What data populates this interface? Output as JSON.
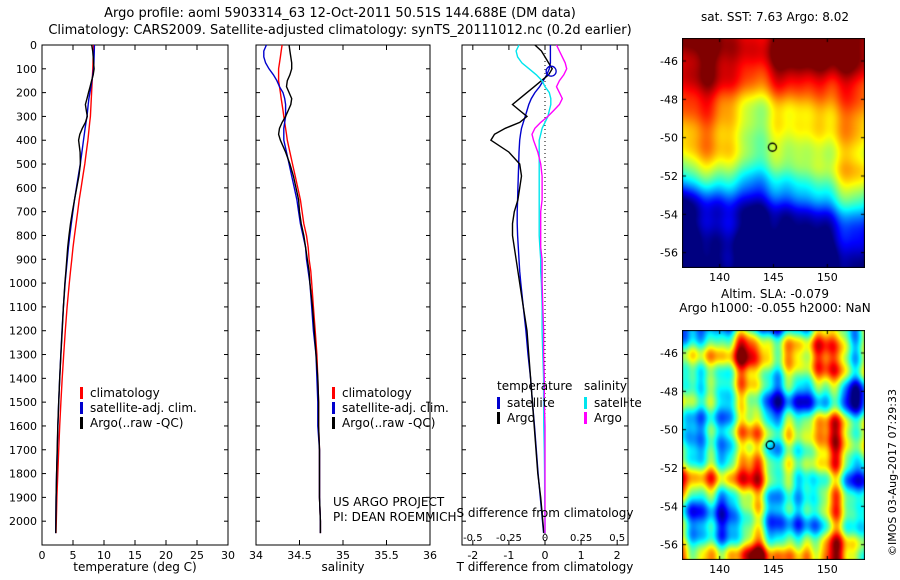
{
  "header": {
    "line1": "Argo profile: aoml 5903314_63 12-Oct-2011 50.51S 144.688E (DM data)",
    "line2": "Climatology: CARS2009. Satellite-adjusted climatology: synTS_20111012.nc (0.2d earlier)"
  },
  "annotations": {
    "project_line1": "US ARGO PROJECT",
    "project_line2": "PI: DEAN ROEMMICH",
    "watermark": "©IMOS 03-Aug-2017 07:29:33"
  },
  "chart_data": [
    {
      "type": "line",
      "id": "temperature",
      "xlabel": "temperature (deg C)",
      "xlim": [
        0,
        30
      ],
      "xticks": [
        0,
        5,
        10,
        15,
        20,
        25,
        30
      ],
      "ylim": [
        0,
        2100
      ],
      "yticks": [
        0,
        100,
        200,
        300,
        400,
        500,
        600,
        700,
        800,
        900,
        1000,
        1100,
        1200,
        1300,
        1400,
        1500,
        1600,
        1700,
        1800,
        1900,
        2000
      ],
      "depth_tick_labels": true,
      "depths": [
        0,
        25,
        50,
        75,
        100,
        125,
        150,
        175,
        200,
        225,
        250,
        275,
        300,
        325,
        350,
        375,
        400,
        450,
        500,
        550,
        600,
        650,
        700,
        750,
        800,
        850,
        900,
        950,
        1000,
        1100,
        1200,
        1300,
        1400,
        1500,
        1600,
        1700,
        1800,
        1900,
        2000,
        2050
      ],
      "series": [
        {
          "name": "climatology",
          "color": "#ff0000",
          "values": [
            8.3,
            8.28,
            8.25,
            8.22,
            8.2,
            8.15,
            8.1,
            8.05,
            8.0,
            7.95,
            7.9,
            7.85,
            7.8,
            7.7,
            7.6,
            7.5,
            7.4,
            7.15,
            6.9,
            6.6,
            6.3,
            6.0,
            5.75,
            5.5,
            5.25,
            5.0,
            4.8,
            4.6,
            4.4,
            4.05,
            3.75,
            3.5,
            3.25,
            3.05,
            2.85,
            2.7,
            2.55,
            2.4,
            2.3,
            2.25
          ]
        },
        {
          "name": "satellite-adj. clim.",
          "color": "#0000cd",
          "values": [
            8.45,
            8.43,
            8.4,
            8.37,
            8.32,
            8.2,
            8.05,
            7.9,
            7.72,
            7.57,
            7.45,
            7.35,
            7.25,
            7.1,
            6.95,
            6.82,
            6.7,
            6.43,
            6.17,
            5.86,
            5.55,
            5.24,
            4.98,
            4.73,
            4.49,
            4.26,
            4.08,
            3.9,
            3.73,
            3.45,
            3.22,
            3.03,
            2.85,
            2.7,
            2.56,
            2.46,
            2.36,
            2.27,
            2.23,
            2.21
          ]
        },
        {
          "name": "Argo(..raw -QC)",
          "color": "#000000",
          "values": [
            8.02,
            8.18,
            8.25,
            8.32,
            8.4,
            8.25,
            8.0,
            7.75,
            7.5,
            7.25,
            7.0,
            7.15,
            7.3,
            7.0,
            6.5,
            6.1,
            5.9,
            6.15,
            6.2,
            5.95,
            5.6,
            5.25,
            4.9,
            4.6,
            4.35,
            4.15,
            4.0,
            3.85,
            3.7,
            3.45,
            3.25,
            3.05,
            2.85,
            2.7,
            2.55,
            2.45,
            2.35,
            2.28,
            2.24,
            2.22
          ]
        }
      ]
    },
    {
      "type": "line",
      "id": "salinity",
      "xlabel": "salinity",
      "xlim": [
        34,
        36
      ],
      "xticks": [
        34,
        34.5,
        35,
        35.5,
        36
      ],
      "ylim": [
        0,
        2100
      ],
      "yticks": [
        0,
        100,
        200,
        300,
        400,
        500,
        600,
        700,
        800,
        900,
        1000,
        1100,
        1200,
        1300,
        1400,
        1500,
        1600,
        1700,
        1800,
        1900,
        2000
      ],
      "depth_tick_labels": false,
      "depths": [
        0,
        25,
        50,
        75,
        100,
        125,
        150,
        175,
        200,
        225,
        250,
        275,
        300,
        325,
        350,
        375,
        400,
        450,
        500,
        550,
        600,
        650,
        700,
        750,
        800,
        850,
        900,
        950,
        1000,
        1100,
        1200,
        1300,
        1400,
        1500,
        1600,
        1700,
        1800,
        1900,
        2000,
        2050
      ],
      "series": [
        {
          "name": "climatology",
          "color": "#ff0000",
          "values": [
            34.3,
            34.29,
            34.28,
            34.27,
            34.26,
            34.26,
            34.26,
            34.27,
            34.28,
            34.29,
            34.3,
            34.31,
            34.32,
            34.33,
            34.34,
            34.35,
            34.36,
            34.39,
            34.42,
            34.45,
            34.48,
            34.51,
            34.53,
            34.55,
            34.58,
            34.6,
            34.61,
            34.63,
            34.64,
            34.66,
            34.68,
            34.7,
            34.71,
            34.72,
            34.72,
            34.73,
            34.73,
            34.73,
            34.74,
            34.74
          ]
        },
        {
          "name": "satellite-adj. clim.",
          "color": "#0000cd",
          "values": [
            34.12,
            34.09,
            34.09,
            34.11,
            34.15,
            34.2,
            34.24,
            34.27,
            34.31,
            34.33,
            34.34,
            34.34,
            34.34,
            34.33,
            34.32,
            34.32,
            34.32,
            34.35,
            34.38,
            34.41,
            34.44,
            34.47,
            34.49,
            34.51,
            34.54,
            34.57,
            34.58,
            34.6,
            34.62,
            34.64,
            34.66,
            34.69,
            34.7,
            34.71,
            34.71,
            34.73,
            34.73,
            34.73,
            34.74,
            34.74
          ]
        },
        {
          "name": "Argo(..raw -QC)",
          "color": "#000000",
          "values": [
            34.38,
            34.39,
            34.4,
            34.41,
            34.41,
            34.39,
            34.36,
            34.35,
            34.38,
            34.41,
            34.4,
            34.37,
            34.34,
            34.3,
            34.27,
            34.26,
            34.28,
            34.34,
            34.39,
            34.43,
            34.46,
            34.49,
            34.5,
            34.52,
            34.55,
            34.57,
            34.59,
            34.61,
            34.62,
            34.65,
            34.67,
            34.69,
            34.71,
            34.72,
            34.72,
            34.73,
            34.73,
            34.73,
            34.74,
            34.74
          ]
        }
      ]
    },
    {
      "type": "line",
      "id": "difference",
      "xlabel": "T difference from climatology",
      "x2label": "S difference from climatology",
      "xlim": [
        -2.3,
        2.3
      ],
      "xticks": [
        -2,
        -1,
        0,
        1,
        2
      ],
      "x2lim": [
        -0.575,
        0.575
      ],
      "x2ticks": [
        -0.5,
        -0.25,
        0,
        0.25,
        0.5
      ],
      "ylim": [
        0,
        2100
      ],
      "yticks": [
        0,
        100,
        200,
        300,
        400,
        500,
        600,
        700,
        800,
        900,
        1000,
        1100,
        1200,
        1300,
        1400,
        1500,
        1600,
        1700,
        1800,
        1900,
        2000
      ],
      "depth_tick_labels": false,
      "zero_line": true,
      "depths": [
        0,
        25,
        50,
        75,
        100,
        125,
        150,
        175,
        200,
        225,
        250,
        275,
        300,
        325,
        350,
        375,
        400,
        450,
        500,
        550,
        600,
        650,
        700,
        750,
        800,
        850,
        900,
        950,
        1000,
        1100,
        1200,
        1300,
        1400,
        1500,
        1600,
        1700,
        1800,
        1900,
        2000,
        2050
      ],
      "series": [
        {
          "name": "satellite",
          "group": "temperature",
          "axis": "T",
          "color": "#0000cd",
          "values": [
            0.15,
            0.15,
            0.15,
            0.15,
            0.12,
            0.05,
            -0.05,
            -0.15,
            -0.28,
            -0.38,
            -0.45,
            -0.5,
            -0.55,
            -0.6,
            -0.65,
            -0.68,
            -0.7,
            -0.72,
            -0.73,
            -0.74,
            -0.75,
            -0.76,
            -0.77,
            -0.77,
            -0.76,
            -0.74,
            -0.72,
            -0.7,
            -0.67,
            -0.6,
            -0.53,
            -0.47,
            -0.4,
            -0.35,
            -0.29,
            -0.24,
            -0.19,
            -0.13,
            -0.07,
            -0.04
          ]
        },
        {
          "name": "Argo",
          "group": "temperature",
          "axis": "T",
          "color": "#000000",
          "values": [
            -0.28,
            -0.1,
            0.0,
            0.1,
            0.2,
            0.1,
            -0.1,
            -0.3,
            -0.5,
            -0.7,
            -0.9,
            -0.7,
            -0.5,
            -0.7,
            -1.1,
            -1.4,
            -1.5,
            -1.0,
            -0.7,
            -0.65,
            -0.7,
            -0.75,
            -0.85,
            -0.9,
            -0.9,
            -0.85,
            -0.8,
            -0.75,
            -0.7,
            -0.6,
            -0.5,
            -0.45,
            -0.4,
            -0.35,
            -0.3,
            -0.25,
            -0.2,
            -0.12,
            -0.06,
            -0.03
          ]
        },
        {
          "name": "satellite",
          "group": "salinity",
          "axis": "S",
          "color": "#00e5ee",
          "values": [
            -0.18,
            -0.2,
            -0.19,
            -0.16,
            -0.11,
            -0.06,
            -0.02,
            0.0,
            0.03,
            0.04,
            0.04,
            0.03,
            0.02,
            0.0,
            -0.02,
            -0.03,
            -0.04,
            -0.04,
            -0.04,
            -0.04,
            -0.04,
            -0.04,
            -0.04,
            -0.04,
            -0.04,
            -0.035,
            -0.03,
            -0.03,
            -0.025,
            -0.02,
            -0.02,
            -0.015,
            -0.01,
            -0.01,
            -0.008,
            -0.005,
            -0.003,
            -0.002,
            0.0,
            0.0
          ]
        },
        {
          "name": "Argo",
          "group": "salinity",
          "axis": "S",
          "color": "#ff00ff",
          "values": [
            0.08,
            0.1,
            0.12,
            0.14,
            0.15,
            0.13,
            0.1,
            0.08,
            0.1,
            0.12,
            0.1,
            0.06,
            0.02,
            -0.03,
            -0.07,
            -0.09,
            -0.08,
            -0.05,
            -0.03,
            -0.02,
            -0.02,
            -0.02,
            -0.03,
            -0.03,
            -0.03,
            -0.03,
            -0.02,
            -0.02,
            -0.02,
            -0.015,
            -0.01,
            -0.01,
            -0.005,
            -0.005,
            0.0,
            0.0,
            0.0,
            0.0,
            0.0,
            0.0
          ]
        }
      ],
      "marker": {
        "axis": "T",
        "value": 0.17,
        "depth": 110,
        "color": "#0000cd"
      },
      "legend": {
        "temp_header": "temperature",
        "sal_header": "salinity",
        "temp_items": [
          "satellite",
          "Argo"
        ],
        "sal_items": [
          "satellite",
          "Argo"
        ]
      }
    },
    {
      "type": "heatmap",
      "id": "sst_map",
      "title": "sat. SST: 7.63 Argo: 8.02",
      "xlim": [
        136.5,
        153.5
      ],
      "xticks": [
        140,
        145,
        150
      ],
      "ylim": [
        -56.8,
        -44.8
      ],
      "yticks": [
        -46,
        -48,
        -50,
        -52,
        -54,
        -56
      ],
      "marker": {
        "lon": 144.9,
        "lat": -50.5
      },
      "palette": "jet",
      "value_range_degC": [
        0,
        15
      ],
      "field_summary": "warm red/orange water in north, green frontal band through middle, cold dark blue water in south, Argo float position circled"
    },
    {
      "type": "heatmap",
      "id": "sla_map",
      "title_line1": "Altim. SLA: -0.079",
      "title_line2": "Argo h1000: -0.055 h2000: NaN",
      "xlim": [
        136.5,
        153.5
      ],
      "xticks": [
        140,
        145,
        150
      ],
      "ylim": [
        -56.8,
        -44.8
      ],
      "yticks": [
        -46,
        -48,
        -50,
        -52,
        -54,
        -56
      ],
      "marker": {
        "lon": 144.7,
        "lat": -50.8
      },
      "palette": "jet",
      "field_summary": "mottled sea-level-anomaly eddy field, mostly green with yellow/orange highs and blue lows, Argo float position circled"
    }
  ]
}
